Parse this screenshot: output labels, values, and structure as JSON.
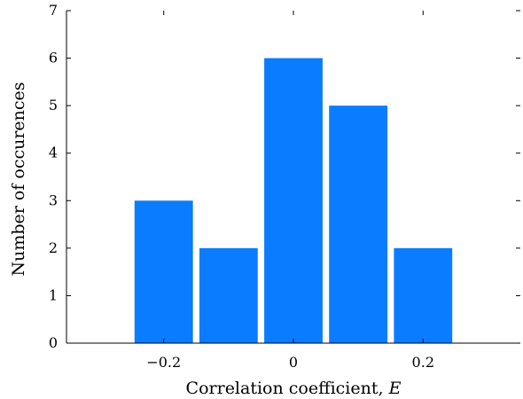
{
  "chart_data": {
    "type": "bar",
    "title": "",
    "xlabel": "Correlation coefficient, ",
    "xlabel_var": "E",
    "ylabel": "Number of occurences",
    "xlim": [
      -0.35,
      0.35
    ],
    "ylim": [
      0,
      7
    ],
    "bar_width": 0.09,
    "x": [
      -0.2,
      -0.1,
      0.0,
      0.1,
      0.2
    ],
    "values": [
      3,
      2,
      6,
      5,
      2
    ],
    "xticks": [
      -0.2,
      0,
      0.2
    ],
    "xtick_labels": [
      "−0.2",
      "0",
      "0.2"
    ],
    "yticks": [
      0,
      1,
      2,
      3,
      4,
      5,
      6,
      7
    ],
    "ytick_labels": [
      "0",
      "1",
      "2",
      "3",
      "4",
      "5",
      "6",
      "7"
    ],
    "bar_color": "#0a7cff",
    "grid": false,
    "legend": "none"
  }
}
